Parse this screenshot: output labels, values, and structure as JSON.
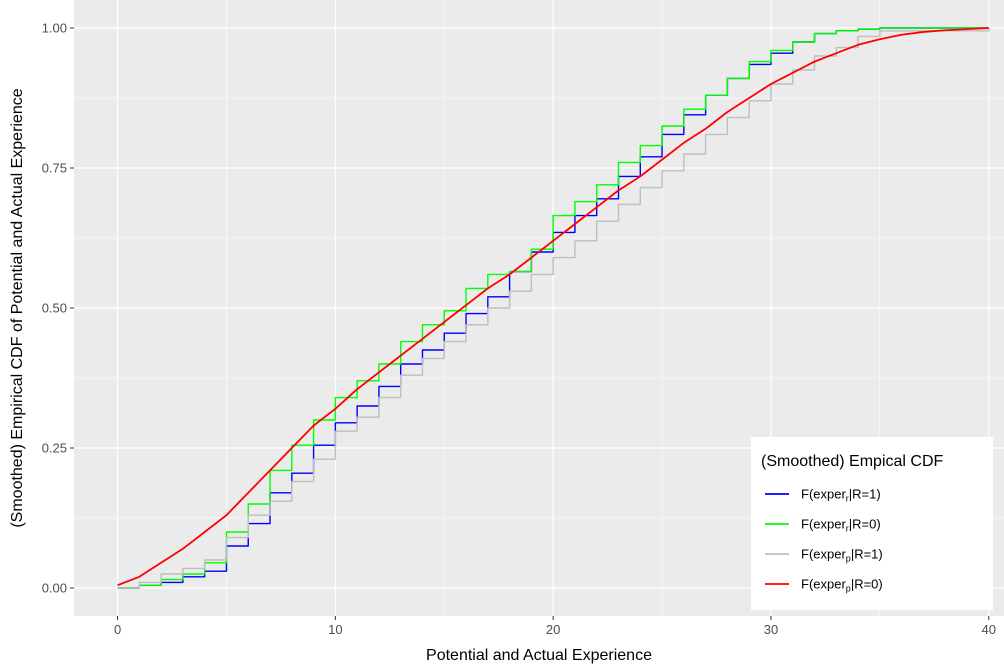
{
  "chart_data": {
    "type": "line",
    "title": "",
    "xlabel": "Potential and Actual Experience",
    "ylabel": "(Smoothed) Empirical CDF of Potential and Actual Experience",
    "xlim": [
      -2,
      40.7
    ],
    "ylim": [
      -0.05,
      1.05
    ],
    "x_ticks": [
      0,
      10,
      20,
      30,
      40
    ],
    "y_ticks": [
      0.0,
      0.25,
      0.5,
      0.75,
      1.0
    ],
    "y_tick_labels": [
      "0.00",
      "0.25",
      "0.50",
      "0.75",
      "1.00"
    ],
    "x_tick_labels": [
      "0",
      "10",
      "20",
      "30",
      "40"
    ],
    "grid": true,
    "legend": {
      "title": "(Smoothed) Empical CDF",
      "placement": "bottom-right",
      "entries": [
        {
          "base": "F(exper",
          "sub": "r",
          "suffix": "|R=1)",
          "color": "#0000ff"
        },
        {
          "base": "F(exper",
          "sub": "r",
          "suffix": "|R=0)",
          "color": "#00ff00"
        },
        {
          "base": "F(exper",
          "sub": "p",
          "suffix": "|R=1)",
          "color": "#bebebe"
        },
        {
          "base": "F(exper",
          "sub": "p",
          "suffix": "|R=0)",
          "color": "#ff0000"
        }
      ]
    },
    "series": [
      {
        "kind": "step",
        "color": "#0000ff",
        "x": [
          0,
          1,
          2,
          3,
          4,
          5,
          6,
          7,
          8,
          9,
          10,
          11,
          12,
          13,
          14,
          15,
          16,
          17,
          18,
          19,
          20,
          21,
          22,
          23,
          24,
          25,
          26,
          27,
          28,
          29,
          30,
          31,
          32,
          33,
          34,
          35,
          40
        ],
        "y": [
          0,
          0.005,
          0.01,
          0.02,
          0.03,
          0.075,
          0.115,
          0.17,
          0.205,
          0.255,
          0.295,
          0.325,
          0.36,
          0.4,
          0.425,
          0.455,
          0.49,
          0.52,
          0.565,
          0.6,
          0.635,
          0.665,
          0.695,
          0.735,
          0.77,
          0.81,
          0.845,
          0.88,
          0.91,
          0.935,
          0.955,
          0.975,
          0.99,
          0.995,
          0.998,
          1.0,
          1.0
        ]
      },
      {
        "kind": "step",
        "color": "#00ff00",
        "x": [
          0,
          1,
          2,
          3,
          4,
          5,
          6,
          7,
          8,
          9,
          10,
          11,
          12,
          13,
          14,
          15,
          16,
          17,
          18,
          19,
          20,
          21,
          22,
          23,
          24,
          25,
          26,
          27,
          28,
          29,
          30,
          31,
          32,
          33,
          34,
          35,
          40
        ],
        "y": [
          0,
          0.005,
          0.015,
          0.025,
          0.045,
          0.1,
          0.15,
          0.21,
          0.255,
          0.3,
          0.34,
          0.37,
          0.4,
          0.44,
          0.47,
          0.495,
          0.535,
          0.56,
          0.565,
          0.605,
          0.665,
          0.69,
          0.72,
          0.76,
          0.79,
          0.825,
          0.855,
          0.88,
          0.91,
          0.94,
          0.96,
          0.975,
          0.99,
          0.995,
          0.998,
          1.0,
          1.0
        ]
      },
      {
        "kind": "step",
        "color": "#bebebe",
        "x": [
          0,
          1,
          2,
          3,
          4,
          5,
          6,
          7,
          8,
          9,
          10,
          11,
          12,
          13,
          14,
          15,
          16,
          17,
          18,
          19,
          20,
          21,
          22,
          23,
          24,
          25,
          26,
          27,
          28,
          29,
          30,
          31,
          32,
          33,
          34,
          35,
          40
        ],
        "y": [
          0,
          0.01,
          0.025,
          0.035,
          0.05,
          0.09,
          0.13,
          0.155,
          0.19,
          0.23,
          0.28,
          0.305,
          0.34,
          0.38,
          0.41,
          0.44,
          0.47,
          0.5,
          0.53,
          0.56,
          0.59,
          0.62,
          0.655,
          0.685,
          0.715,
          0.745,
          0.775,
          0.81,
          0.84,
          0.87,
          0.9,
          0.925,
          0.95,
          0.965,
          0.985,
          0.995,
          1.0
        ]
      },
      {
        "kind": "line",
        "color": "#ff0000",
        "x": [
          0,
          1,
          2,
          3,
          4,
          5,
          6,
          7,
          8,
          9,
          10,
          11,
          12,
          13,
          14,
          15,
          16,
          17,
          18,
          19,
          20,
          21,
          22,
          23,
          24,
          25,
          26,
          27,
          28,
          29,
          30,
          31,
          32,
          33,
          34,
          35,
          36,
          37,
          38,
          39,
          40
        ],
        "y": [
          0.005,
          0.02,
          0.045,
          0.07,
          0.1,
          0.13,
          0.17,
          0.21,
          0.25,
          0.29,
          0.32,
          0.355,
          0.385,
          0.415,
          0.445,
          0.475,
          0.505,
          0.535,
          0.56,
          0.59,
          0.62,
          0.65,
          0.68,
          0.71,
          0.735,
          0.765,
          0.795,
          0.82,
          0.85,
          0.875,
          0.9,
          0.92,
          0.94,
          0.955,
          0.97,
          0.98,
          0.988,
          0.993,
          0.996,
          0.998,
          1.0
        ]
      }
    ]
  }
}
